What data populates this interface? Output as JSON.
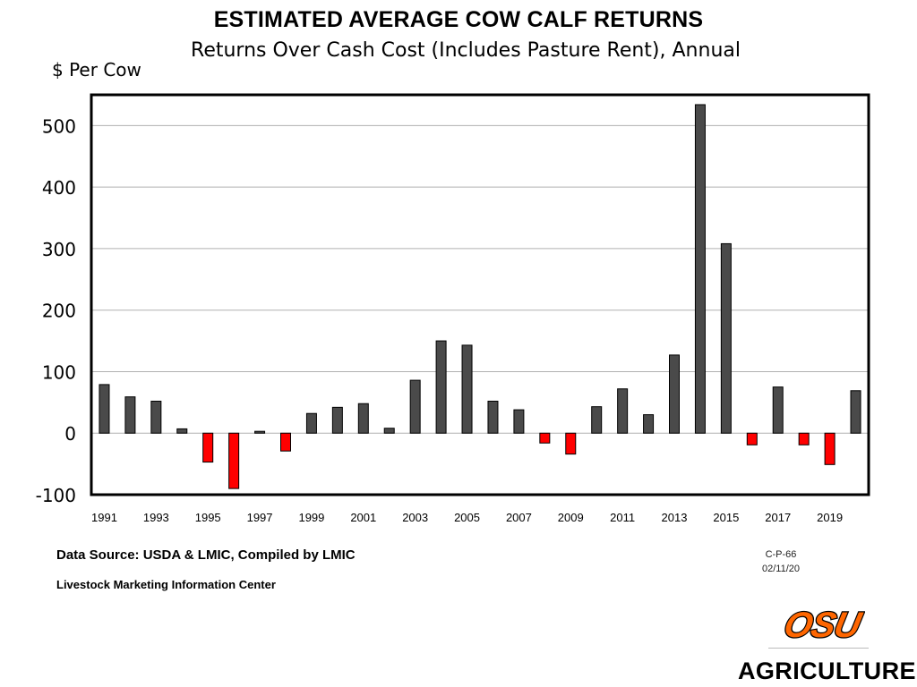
{
  "header": {
    "title": "ESTIMATED AVERAGE COW CALF RETURNS",
    "subtitle": "Returns Over Cash Cost (Includes Pasture Rent), Annual",
    "ylabel": "$ Per Cow"
  },
  "footer": {
    "source": "Data Source:  USDA & LMIC, Compiled by LMIC",
    "org": "Livestock Marketing Information Center",
    "chart_code": "C-P-66",
    "chart_date": "02/11/20",
    "logo_text": "OSU",
    "brand": "AGRICULTURE"
  },
  "colors": {
    "positive": "#4a4a4a",
    "negative": "#ff0000",
    "grid": "#b0b0b0",
    "logo_orange": "#ff6600"
  },
  "chart_data": {
    "type": "bar",
    "title": "ESTIMATED AVERAGE COW CALF RETURNS",
    "subtitle": "Returns Over Cash Cost (Includes Pasture Rent), Annual",
    "xlabel": "",
    "ylabel": "$ Per Cow",
    "ylim": [
      -100,
      550
    ],
    "yticks": [
      -100,
      0,
      100,
      200,
      300,
      400,
      500
    ],
    "grid": true,
    "legend": "none",
    "categories": [
      "1991",
      "1992",
      "1993",
      "1994",
      "1995",
      "1996",
      "1997",
      "1998",
      "1999",
      "2000",
      "2001",
      "2002",
      "2003",
      "2004",
      "2005",
      "2006",
      "2007",
      "2008",
      "2009",
      "2010",
      "2011",
      "2012",
      "2013",
      "2014",
      "2015",
      "2016",
      "2017",
      "2018",
      "2019",
      "2020"
    ],
    "xtick_labels": [
      "1991",
      "1993",
      "1995",
      "1997",
      "1999",
      "2001",
      "2003",
      "2005",
      "2007",
      "2009",
      "2011",
      "2013",
      "2015",
      "2017",
      "2019"
    ],
    "values": [
      79,
      59,
      52,
      7,
      -47,
      -90,
      3,
      -29,
      32,
      42,
      48,
      8,
      86,
      150,
      143,
      52,
      38,
      -16,
      -34,
      43,
      72,
      30,
      127,
      534,
      308,
      -19,
      75,
      -19,
      -51,
      69
    ]
  }
}
